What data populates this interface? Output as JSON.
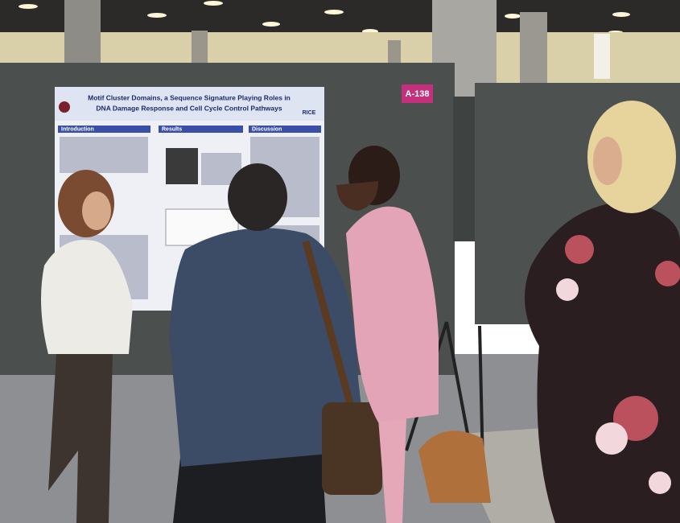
{
  "poster": {
    "title_lines": [
      "Motif Cluster Domains, a Sequence Signature Playing Roles in",
      "DNA Damage Response and Cell Cycle Control Pathways"
    ],
    "sections": [
      "Introduction",
      "Results",
      "Discussion"
    ],
    "logo": "RICE"
  },
  "sign": {
    "booth": "A-138"
  }
}
